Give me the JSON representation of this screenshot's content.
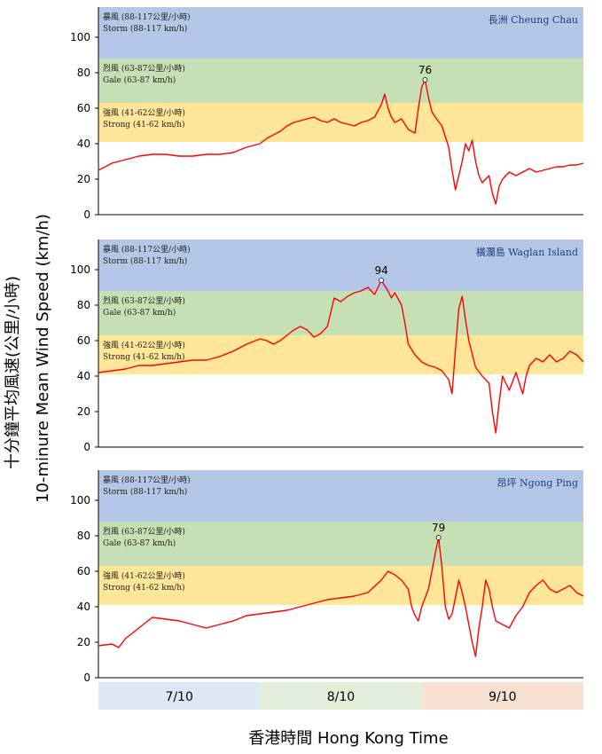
{
  "chart_data": {
    "type": "line",
    "ylabel": "十分鐘平均風速(公里/小時)",
    "ylabel_en": "10-minure Mean Wind Speed (km/h)",
    "xlabel": "香港時間 Hong Kong Time",
    "ylim": [
      0,
      117
    ],
    "yticks": [
      "0",
      "20",
      "40",
      "60",
      "80",
      "100"
    ],
    "x_range_hours": [
      0,
      72
    ],
    "days": [
      {
        "label": "7/10",
        "color": "#dce9f5"
      },
      {
        "label": "8/10",
        "color": "#e3efda"
      },
      {
        "label": "9/10",
        "color": "#f8e0d3"
      }
    ],
    "bands": [
      {
        "name": "Strong",
        "range": [
          41,
          62
        ],
        "label_zh": "強風 (41-62公里/小時)",
        "label_en": "Strong (41-62 km/h)",
        "color": "#ffe699"
      },
      {
        "name": "Gale",
        "range": [
          63,
          87
        ],
        "label_zh": "烈風 (63-87公里/小時)",
        "label_en": "Gale (63-87 km/h)",
        "color": "#c5e0b4"
      },
      {
        "name": "Storm",
        "range": [
          88,
          117
        ],
        "label_zh": "暴風 (88-117公里/小時)",
        "label_en": "Storm (88-117 km/h)",
        "color": "#b4c7e7"
      }
    ],
    "line_color": "#ff0000",
    "panels": [
      {
        "station": "長洲 Cheung Chau",
        "peak": {
          "x": 48.5,
          "y": 76,
          "label": "76"
        },
        "series": [
          [
            0,
            25
          ],
          [
            2,
            29
          ],
          [
            4,
            31
          ],
          [
            6,
            33
          ],
          [
            8,
            34
          ],
          [
            10,
            34
          ],
          [
            12,
            33
          ],
          [
            14,
            33
          ],
          [
            16,
            34
          ],
          [
            18,
            34
          ],
          [
            20,
            35
          ],
          [
            22,
            38
          ],
          [
            24,
            40
          ],
          [
            25,
            43
          ],
          [
            26,
            45
          ],
          [
            27,
            47
          ],
          [
            28,
            50
          ],
          [
            29,
            52
          ],
          [
            30,
            53
          ],
          [
            31,
            54
          ],
          [
            32,
            55
          ],
          [
            33,
            53
          ],
          [
            34,
            52
          ],
          [
            35,
            54
          ],
          [
            36,
            52
          ],
          [
            37,
            51
          ],
          [
            38,
            50
          ],
          [
            39,
            52
          ],
          [
            40,
            53
          ],
          [
            41,
            55
          ],
          [
            42,
            62
          ],
          [
            42.5,
            68
          ],
          [
            43,
            60
          ],
          [
            43.5,
            55
          ],
          [
            44,
            52
          ],
          [
            45,
            54
          ],
          [
            46,
            48
          ],
          [
            47,
            46
          ],
          [
            47.5,
            60
          ],
          [
            48,
            72
          ],
          [
            48.5,
            76
          ],
          [
            49,
            66
          ],
          [
            49.5,
            58
          ],
          [
            50,
            55
          ],
          [
            51,
            50
          ],
          [
            52,
            38
          ],
          [
            52.5,
            25
          ],
          [
            53,
            14
          ],
          [
            53.5,
            22
          ],
          [
            54,
            30
          ],
          [
            54.5,
            40
          ],
          [
            55,
            36
          ],
          [
            55.5,
            42
          ],
          [
            56,
            30
          ],
          [
            56.5,
            22
          ],
          [
            57,
            18
          ],
          [
            58,
            22
          ],
          [
            58.5,
            12
          ],
          [
            59,
            6
          ],
          [
            59.5,
            16
          ],
          [
            60,
            20
          ],
          [
            61,
            24
          ],
          [
            62,
            22
          ],
          [
            63,
            24
          ],
          [
            64,
            26
          ],
          [
            65,
            24
          ],
          [
            66,
            25
          ],
          [
            67,
            26
          ],
          [
            68,
            27
          ],
          [
            69,
            27
          ],
          [
            70,
            28
          ],
          [
            71,
            28
          ],
          [
            72,
            29
          ]
        ]
      },
      {
        "station": "橫瀾島 Waglan Island",
        "peak": {
          "x": 42,
          "y": 94,
          "label": "94"
        },
        "series": [
          [
            0,
            42
          ],
          [
            2,
            43
          ],
          [
            4,
            44
          ],
          [
            6,
            46
          ],
          [
            8,
            46
          ],
          [
            10,
            47
          ],
          [
            12,
            48
          ],
          [
            14,
            49
          ],
          [
            16,
            49
          ],
          [
            18,
            51
          ],
          [
            20,
            54
          ],
          [
            22,
            58
          ],
          [
            24,
            61
          ],
          [
            25,
            60
          ],
          [
            26,
            58
          ],
          [
            27,
            60
          ],
          [
            28,
            63
          ],
          [
            29,
            66
          ],
          [
            30,
            68
          ],
          [
            31,
            66
          ],
          [
            32,
            62
          ],
          [
            33,
            64
          ],
          [
            34,
            68
          ],
          [
            35,
            84
          ],
          [
            36,
            82
          ],
          [
            37,
            85
          ],
          [
            38,
            87
          ],
          [
            39,
            88
          ],
          [
            40,
            90
          ],
          [
            41,
            86
          ],
          [
            42,
            94
          ],
          [
            43,
            88
          ],
          [
            43.5,
            84
          ],
          [
            44,
            87
          ],
          [
            45,
            80
          ],
          [
            45.5,
            70
          ],
          [
            46,
            58
          ],
          [
            47,
            52
          ],
          [
            48,
            48
          ],
          [
            49,
            46
          ],
          [
            50,
            45
          ],
          [
            51,
            43
          ],
          [
            52,
            38
          ],
          [
            52.5,
            30
          ],
          [
            53,
            55
          ],
          [
            53.5,
            78
          ],
          [
            54,
            85
          ],
          [
            54.5,
            72
          ],
          [
            55,
            60
          ],
          [
            56,
            45
          ],
          [
            57,
            40
          ],
          [
            58,
            36
          ],
          [
            58.5,
            20
          ],
          [
            59,
            8
          ],
          [
            59.5,
            25
          ],
          [
            60,
            40
          ],
          [
            61,
            32
          ],
          [
            62,
            42
          ],
          [
            63,
            30
          ],
          [
            63.5,
            40
          ],
          [
            64,
            46
          ],
          [
            65,
            50
          ],
          [
            66,
            48
          ],
          [
            67,
            52
          ],
          [
            68,
            48
          ],
          [
            69,
            50
          ],
          [
            70,
            54
          ],
          [
            71,
            52
          ],
          [
            72,
            48
          ]
        ]
      },
      {
        "station": "昂坪 Ngong Ping",
        "peak": {
          "x": 50.5,
          "y": 79,
          "label": "79"
        },
        "series": [
          [
            0,
            18
          ],
          [
            2,
            19
          ],
          [
            3,
            17
          ],
          [
            4,
            22
          ],
          [
            5,
            25
          ],
          [
            6,
            28
          ],
          [
            7,
            31
          ],
          [
            8,
            34
          ],
          [
            10,
            33
          ],
          [
            12,
            32
          ],
          [
            14,
            30
          ],
          [
            16,
            28
          ],
          [
            18,
            30
          ],
          [
            20,
            32
          ],
          [
            22,
            35
          ],
          [
            24,
            36
          ],
          [
            26,
            37
          ],
          [
            28,
            38
          ],
          [
            30,
            40
          ],
          [
            32,
            42
          ],
          [
            34,
            44
          ],
          [
            36,
            45
          ],
          [
            38,
            46
          ],
          [
            40,
            48
          ],
          [
            42,
            55
          ],
          [
            43,
            60
          ],
          [
            44,
            58
          ],
          [
            45,
            55
          ],
          [
            46,
            50
          ],
          [
            46.5,
            40
          ],
          [
            47,
            35
          ],
          [
            47.5,
            32
          ],
          [
            48,
            40
          ],
          [
            49,
            50
          ],
          [
            49.5,
            60
          ],
          [
            50,
            70
          ],
          [
            50.5,
            79
          ],
          [
            51,
            62
          ],
          [
            51.5,
            40
          ],
          [
            52,
            33
          ],
          [
            52.5,
            36
          ],
          [
            53,
            45
          ],
          [
            53.5,
            55
          ],
          [
            54,
            48
          ],
          [
            54.5,
            40
          ],
          [
            55,
            30
          ],
          [
            55.5,
            20
          ],
          [
            56,
            12
          ],
          [
            56.5,
            28
          ],
          [
            57,
            40
          ],
          [
            57.5,
            55
          ],
          [
            58,
            50
          ],
          [
            58.5,
            40
          ],
          [
            59,
            32
          ],
          [
            60,
            30
          ],
          [
            61,
            28
          ],
          [
            62,
            35
          ],
          [
            63,
            40
          ],
          [
            64,
            48
          ],
          [
            65,
            52
          ],
          [
            66,
            55
          ],
          [
            67,
            50
          ],
          [
            68,
            48
          ],
          [
            69,
            50
          ],
          [
            70,
            52
          ],
          [
            71,
            48
          ],
          [
            72,
            46
          ]
        ]
      }
    ]
  }
}
